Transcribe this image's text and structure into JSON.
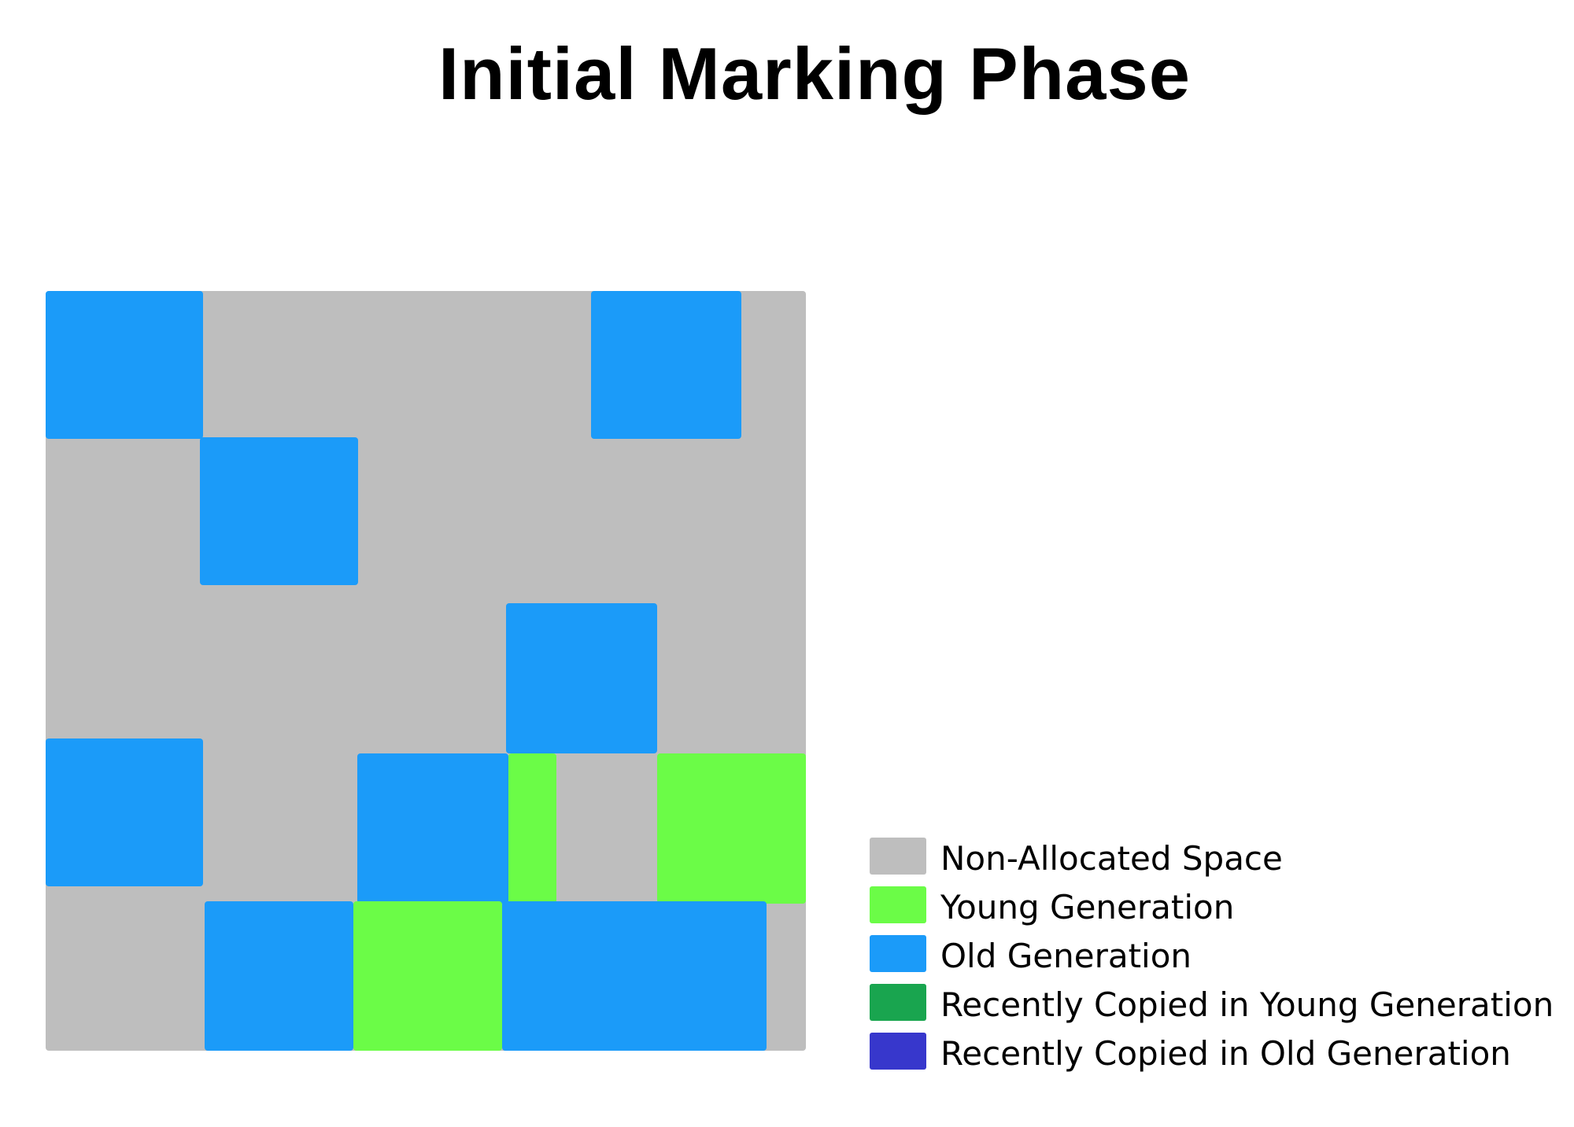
{
  "title": "Initial Marking Phase",
  "colors": {
    "non_allocated": "#bebebe",
    "young": "#6bfc47",
    "old": "#1b9bf9",
    "recent_young": "#19a54f",
    "recent_old": "#3737cc"
  },
  "legend": [
    {
      "label": "Non-Allocated Space",
      "color": "#bebebe"
    },
    {
      "label": "Young Generation",
      "color": "#6bfc47"
    },
    {
      "label": "Old Generation",
      "color": "#1b9bf9"
    },
    {
      "label": "Recently Copied in Young Generation",
      "color": "#19a54f"
    },
    {
      "label": "Recently Copied in Old Generation",
      "color": "#3737cc"
    }
  ],
  "regions": [
    {
      "kind": "old"
    },
    {
      "kind": "old"
    },
    {
      "kind": "old"
    },
    {
      "kind": "old"
    },
    {
      "kind": "old"
    },
    {
      "kind": "old"
    },
    {
      "kind": "young"
    },
    {
      "kind": "young"
    },
    {
      "kind": "old"
    },
    {
      "kind": "young"
    },
    {
      "kind": "old"
    }
  ]
}
